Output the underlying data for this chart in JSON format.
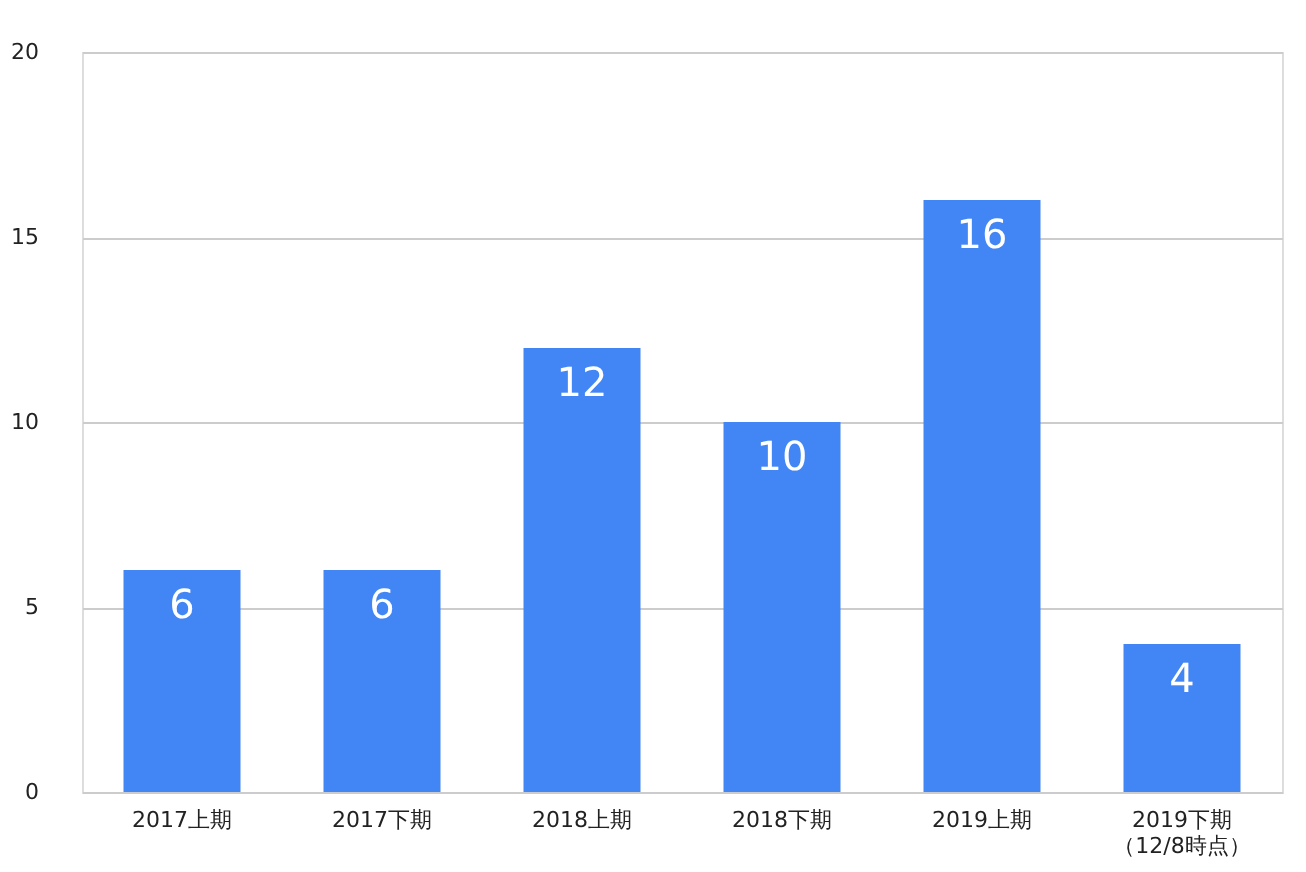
{
  "chart_data": {
    "type": "bar",
    "categories": [
      "2017上期",
      "2017下期",
      "2018上期",
      "2018下期",
      "2019上期",
      "2019下期（12/8時点）"
    ],
    "values": [
      6,
      6,
      12,
      10,
      16,
      4
    ],
    "color": "#4285f4",
    "data_labels": true,
    "ylim": [
      0,
      20
    ],
    "yticks": [
      0,
      5,
      10,
      15,
      20
    ],
    "grid": "y"
  }
}
